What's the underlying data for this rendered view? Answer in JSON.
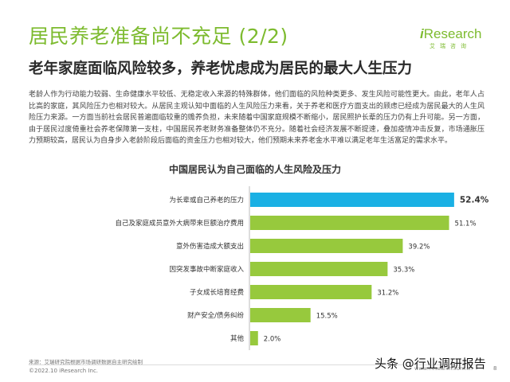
{
  "header": {
    "title": "居民养老准备尚不充足 (2/2)",
    "subtitle": "老年家庭面临风险较多，养老忧虑成为居民的最大人生压力"
  },
  "logo": {
    "brand_prefix": "i",
    "brand_name": "Research",
    "brand_sub": "艾瑞咨询"
  },
  "intro_text": "老龄人作为行动能力较弱、生命健康水平较低、无稳定收入来源的特殊群体，他们面临的风险种类更多、发生风险可能性更大。由此，老年人占比高的家庭，其风险压力也相对较大。从居民主观认知中面临的人生风险压力来看，关于养老和医疗方面支出的顾虑已经成为居民最大的人生风险压力来源。一方面当前社会居民普遍面临较重的赡养负担，未来随着中国家庭规模不断缩小，居民照护长辈的压力仍有上升可能。另一方面，由于居民过度倚重社会养老保障第一支柱，中国居民养老财务准备整体仍不充分。随着社会经济发展不断提速，叠加疫情冲击反复，市场通胀压力预期较高，居民认为自身步入老龄阶段后面临的资金压力也相对较大，他们预期未来养老金水平难以满足老年生活富足的需求水平。",
  "chart_data": {
    "type": "bar",
    "orientation": "horizontal",
    "title": "中国居民认为自己面临的人生风险及压力",
    "categories": [
      "为长辈或自己养老的压力",
      "自己及家庭成员意外大病带来巨额治疗费用",
      "意外伤害造成大额支出",
      "因突发事故中断家庭收入",
      "子女成长培育经费",
      "财产安全/债务纠纷",
      "其他"
    ],
    "values": [
      52.4,
      51.1,
      39.2,
      35.3,
      31.2,
      15.5,
      2.0
    ],
    "value_labels": [
      "52.4%",
      "51.1%",
      "39.2%",
      "35.3%",
      "31.2%",
      "15.5%",
      "2.0%"
    ],
    "highlight_index": 0,
    "colors": {
      "highlight": "#1ab0e4",
      "normal": "#97c93d",
      "axis": "#bbbbbb"
    },
    "xlim": [
      0,
      60
    ],
    "grid": false,
    "legend": "none"
  },
  "footer": {
    "source": "来源：艾瑞研究院根据市场调研数据自主研究绘制",
    "copyright": "©2022.10 iResearch Inc.",
    "website": "www.iresearch.com.cn",
    "page": "8",
    "watermark": "头条 @行业调研报告"
  }
}
